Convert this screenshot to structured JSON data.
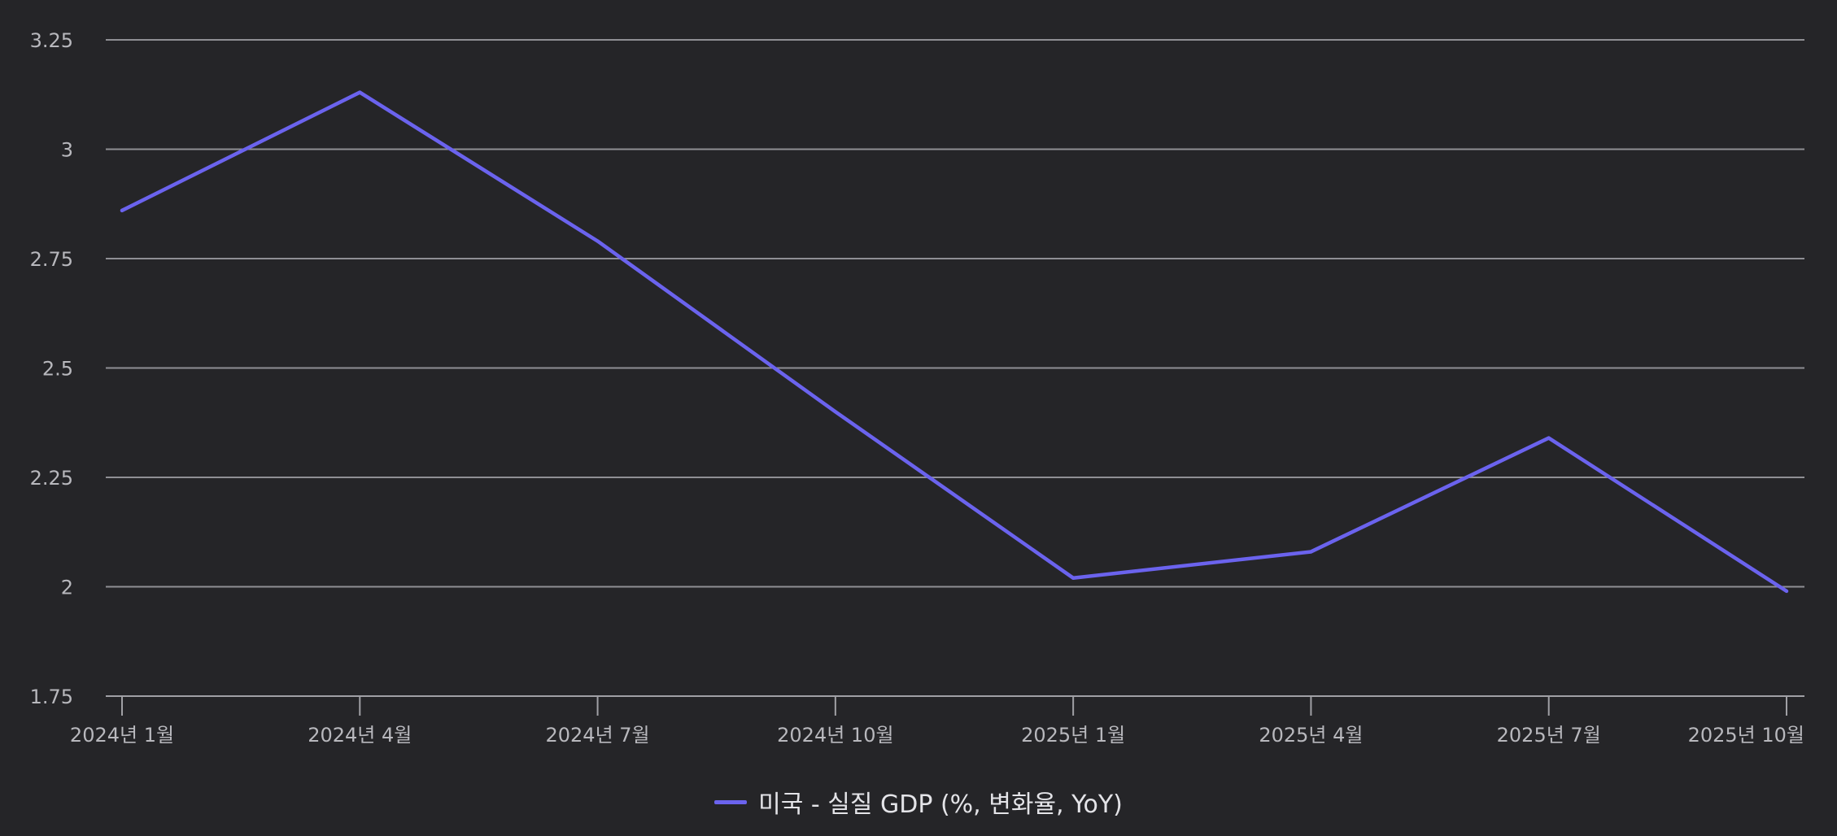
{
  "chart_data": {
    "type": "line",
    "title": "",
    "xlabel": "",
    "ylabel": "",
    "categories": [
      "2024년 1월",
      "2024년 4월",
      "2024년 7월",
      "2024년 10월",
      "2025년 1월",
      "2025년 4월",
      "2025년 7월",
      "2025년 10월"
    ],
    "y_ticks": [
      "1.75",
      "2",
      "2.25",
      "2.5",
      "2.75",
      "3",
      "3.25"
    ],
    "ylim": [
      1.75,
      3.25
    ],
    "grid": true,
    "legend_position": "bottom-center",
    "series": [
      {
        "name": "미국 - 실질 GDP (%, 변화율, YoY)",
        "color": "#6b63ee",
        "values": [
          2.86,
          3.13,
          2.79,
          2.4,
          2.02,
          2.08,
          2.34,
          1.99
        ]
      }
    ]
  },
  "colors": {
    "background": "#252528",
    "gridline": "#8f8f94",
    "axis_text": "#b8b8bd"
  }
}
